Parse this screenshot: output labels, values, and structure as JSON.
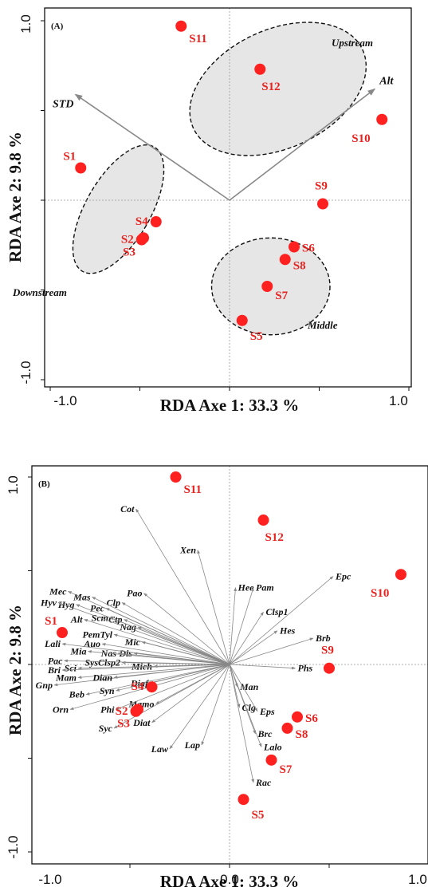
{
  "chart_data": [
    {
      "panel": "(A)",
      "type": "scatter",
      "xlabel": "RDA Axe 1: 33.3 %",
      "ylabel": "RDA Axe 2: 9.8 %",
      "xlim": [
        -1.0,
        1.0
      ],
      "ylim": [
        -1.0,
        1.0
      ],
      "x_ticks": [
        "-1.0",
        "1.0"
      ],
      "y_ticks": [
        "1.0",
        "-1.0"
      ],
      "sites": [
        {
          "name": "S1",
          "x": -0.83,
          "y": 0.18
        },
        {
          "name": "S2",
          "x": -0.49,
          "y": -0.22
        },
        {
          "name": "S3",
          "x": -0.48,
          "y": -0.21
        },
        {
          "name": "S4",
          "x": -0.41,
          "y": -0.12
        },
        {
          "name": "S5",
          "x": 0.07,
          "y": -0.67
        },
        {
          "name": "S6",
          "x": 0.36,
          "y": -0.26
        },
        {
          "name": "S7",
          "x": 0.21,
          "y": -0.48
        },
        {
          "name": "S8",
          "x": 0.31,
          "y": -0.33
        },
        {
          "name": "S9",
          "x": 0.52,
          "y": -0.02
        },
        {
          "name": "S10",
          "x": 0.85,
          "y": 0.45
        },
        {
          "name": "S11",
          "x": -0.27,
          "y": 0.97
        },
        {
          "name": "S12",
          "x": 0.17,
          "y": 0.73
        }
      ],
      "env_vectors": [
        {
          "name": "STD",
          "x": -0.86,
          "y": 0.59
        },
        {
          "name": "Alt",
          "x": 0.81,
          "y": 0.62
        }
      ],
      "groups": [
        {
          "name": "Upstream",
          "cx": 0.27,
          "cy": 0.62,
          "rx": 0.52,
          "ry": 0.33,
          "angle": 25
        },
        {
          "name": "Downstream",
          "cx": -0.62,
          "cy": -0.05,
          "rx": 0.18,
          "ry": 0.4,
          "angle": -30
        },
        {
          "name": "Middle",
          "cx": 0.23,
          "cy": -0.48,
          "rx": 0.33,
          "ry": 0.27,
          "angle": 0
        }
      ]
    },
    {
      "panel": "(B)",
      "type": "scatter",
      "xlabel": "RDA Axe 1: 33.3 %",
      "ylabel": "RDA Axe 2: 9.8 %",
      "xlim": [
        -1.0,
        1.0
      ],
      "ylim": [
        -1.0,
        1.0
      ],
      "x_ticks": [
        "-1.0",
        "0.0",
        "1.0"
      ],
      "y_ticks": [
        "1.0",
        "-1.0"
      ],
      "sites": [
        {
          "name": "S1",
          "x": -0.84,
          "y": 0.17
        },
        {
          "name": "S2",
          "x": -0.47,
          "y": -0.25
        },
        {
          "name": "S3",
          "x": -0.46,
          "y": -0.24
        },
        {
          "name": "S4",
          "x": -0.39,
          "y": -0.12
        },
        {
          "name": "S5",
          "x": 0.07,
          "y": -0.72
        },
        {
          "name": "S6",
          "x": 0.34,
          "y": -0.28
        },
        {
          "name": "S7",
          "x": 0.21,
          "y": -0.51
        },
        {
          "name": "S8",
          "x": 0.29,
          "y": -0.34
        },
        {
          "name": "S9",
          "x": 0.5,
          "y": -0.02
        },
        {
          "name": "S10",
          "x": 0.86,
          "y": 0.48
        },
        {
          "name": "S11",
          "x": -0.27,
          "y": 1.0
        },
        {
          "name": "S12",
          "x": 0.17,
          "y": 0.77
        }
      ],
      "species": [
        {
          "name": "Cot",
          "x": -0.47,
          "y": 0.83
        },
        {
          "name": "Xen",
          "x": -0.16,
          "y": 0.61
        },
        {
          "name": "Hee",
          "x": 0.03,
          "y": 0.41
        },
        {
          "name": "Pam",
          "x": 0.12,
          "y": 0.41
        },
        {
          "name": "Epc",
          "x": 0.52,
          "y": 0.47
        },
        {
          "name": "Clsp1",
          "x": 0.17,
          "y": 0.28
        },
        {
          "name": "Hes",
          "x": 0.24,
          "y": 0.18
        },
        {
          "name": "Brb",
          "x": 0.42,
          "y": 0.14
        },
        {
          "name": "Phs",
          "x": 0.33,
          "y": -0.02
        },
        {
          "name": "Man",
          "x": 0.04,
          "y": -0.12
        },
        {
          "name": "Clg",
          "x": 0.05,
          "y": -0.23
        },
        {
          "name": "Eps",
          "x": 0.14,
          "y": -0.25
        },
        {
          "name": "Brc",
          "x": 0.13,
          "y": -0.37
        },
        {
          "name": "Lalo",
          "x": 0.16,
          "y": -0.44
        },
        {
          "name": "Rac",
          "x": 0.12,
          "y": -0.63
        },
        {
          "name": "Lap",
          "x": -0.14,
          "y": -0.43
        },
        {
          "name": "Law",
          "x": -0.3,
          "y": -0.45
        },
        {
          "name": "Diat",
          "x": -0.39,
          "y": -0.31
        },
        {
          "name": "Mamo",
          "x": -0.37,
          "y": -0.21
        },
        {
          "name": "Diaf",
          "x": -0.4,
          "y": -0.1
        },
        {
          "name": "Syc",
          "x": -0.58,
          "y": -0.34
        },
        {
          "name": "Phi",
          "x": -0.57,
          "y": -0.24
        },
        {
          "name": "Orn",
          "x": -0.8,
          "y": -0.24
        },
        {
          "name": "Beb",
          "x": -0.72,
          "y": -0.16
        },
        {
          "name": "Syn",
          "x": -0.57,
          "y": -0.14
        },
        {
          "name": "Gnp",
          "x": -0.88,
          "y": -0.11
        },
        {
          "name": "Mam",
          "x": -0.76,
          "y": -0.07
        },
        {
          "name": "Dian",
          "x": -0.58,
          "y": -0.07
        },
        {
          "name": "Mich",
          "x": -0.38,
          "y": -0.01
        },
        {
          "name": "SysClsp2",
          "x": -0.54,
          "y": 0.01
        },
        {
          "name": "Sci",
          "x": -0.76,
          "y": -0.02
        },
        {
          "name": "Bri",
          "x": -0.84,
          "y": -0.03
        },
        {
          "name": "Pac",
          "x": -0.83,
          "y": 0.02
        },
        {
          "name": "Dis",
          "x": -0.48,
          "y": 0.06
        },
        {
          "name": "Nas",
          "x": -0.56,
          "y": 0.06
        },
        {
          "name": "Mia",
          "x": -0.71,
          "y": 0.07
        },
        {
          "name": "Auo",
          "x": -0.64,
          "y": 0.11
        },
        {
          "name": "Lali",
          "x": -0.84,
          "y": 0.11
        },
        {
          "name": "Mic",
          "x": -0.44,
          "y": 0.12
        },
        {
          "name": "PemTyl",
          "x": -0.58,
          "y": 0.16
        },
        {
          "name": "Nag",
          "x": -0.46,
          "y": 0.2
        },
        {
          "name": "Ctp",
          "x": -0.53,
          "y": 0.24
        },
        {
          "name": "Scm",
          "x": -0.6,
          "y": 0.25
        },
        {
          "name": "Alt",
          "x": -0.73,
          "y": 0.24
        },
        {
          "name": "Pec",
          "x": -0.62,
          "y": 0.3
        },
        {
          "name": "Hyg",
          "x": -0.77,
          "y": 0.32
        },
        {
          "name": "Hyv",
          "x": -0.86,
          "y": 0.33
        },
        {
          "name": "Clp",
          "x": -0.54,
          "y": 0.33
        },
        {
          "name": "Mas",
          "x": -0.69,
          "y": 0.36
        },
        {
          "name": "Mec",
          "x": -0.81,
          "y": 0.39
        },
        {
          "name": "Pao",
          "x": -0.43,
          "y": 0.38
        }
      ]
    }
  ]
}
